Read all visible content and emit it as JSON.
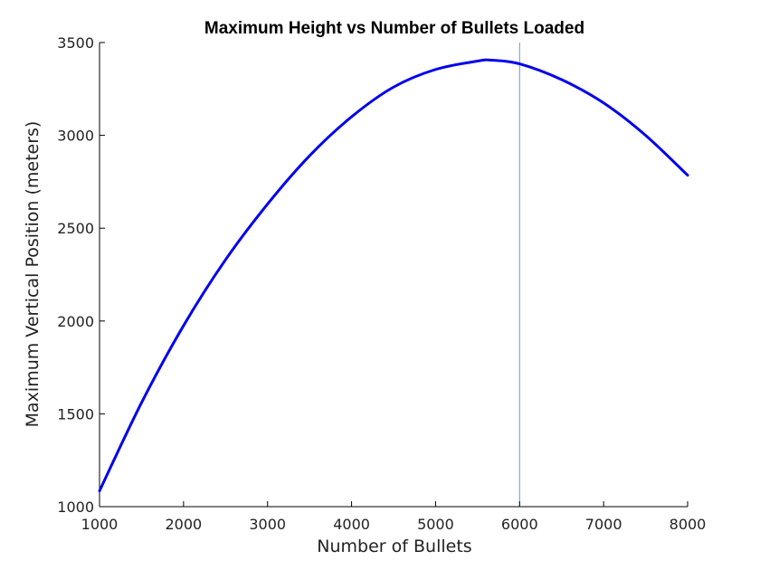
{
  "chart_data": {
    "type": "line",
    "title": "Maximum Height vs Number of Bullets Loaded",
    "xlabel": "Number of Bullets",
    "ylabel": "Maximum Vertical Position (meters)",
    "xlim": [
      1000,
      8000
    ],
    "ylim": [
      1000,
      3500
    ],
    "x_ticks": [
      1000,
      2000,
      3000,
      4000,
      5000,
      6000,
      7000,
      8000
    ],
    "x_tick_labels": [
      "1000",
      "2000",
      "3000",
      "4000",
      "5000",
      "6000",
      "7000",
      "8000"
    ],
    "y_ticks": [
      1000,
      1500,
      2000,
      2500,
      3000,
      3500
    ],
    "y_tick_labels": [
      "1000",
      "1500",
      "2000",
      "2500",
      "3000",
      "3500"
    ],
    "grid": false,
    "series": [
      {
        "color": "#0000ee",
        "x": [
          1000,
          1500,
          2000,
          2500,
          3000,
          3500,
          4000,
          4500,
          5000,
          5500,
          5670,
          6000,
          6500,
          7000,
          7500,
          8000
        ],
        "y": [
          1085,
          1560,
          1975,
          2330,
          2630,
          2890,
          3100,
          3260,
          3355,
          3400,
          3405,
          3385,
          3300,
          3175,
          3000,
          2785
        ]
      }
    ],
    "annotations": [
      {
        "type": "vline",
        "x": 6000,
        "color": "#5b9bd5"
      }
    ]
  }
}
